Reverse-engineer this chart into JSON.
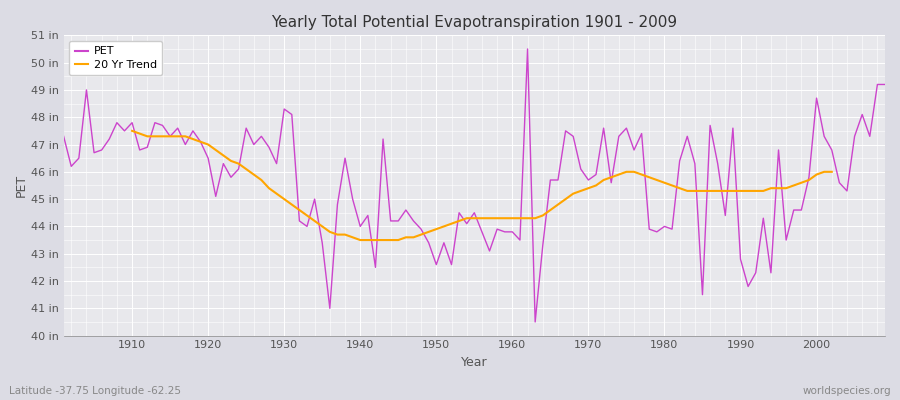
{
  "title": "Yearly Total Potential Evapotranspiration 1901 - 2009",
  "xlabel": "Year",
  "ylabel": "PET",
  "subtitle": "Latitude -37.75 Longitude -62.25",
  "watermark": "worldspecies.org",
  "pet_color": "#CC44CC",
  "trend_color": "#FFA500",
  "bg_color": "#E8E8EC",
  "fig_color": "#DCDCE4",
  "grid_color": "#FFFFFF",
  "ylim": [
    40,
    51
  ],
  "yticks": [
    40,
    41,
    42,
    43,
    44,
    45,
    46,
    47,
    48,
    49,
    50,
    51
  ],
  "xticks": [
    1910,
    1920,
    1930,
    1940,
    1950,
    1960,
    1970,
    1980,
    1990,
    2000
  ],
  "years": [
    1901,
    1902,
    1903,
    1904,
    1905,
    1906,
    1907,
    1908,
    1909,
    1910,
    1911,
    1912,
    1913,
    1914,
    1915,
    1916,
    1917,
    1918,
    1919,
    1920,
    1921,
    1922,
    1923,
    1924,
    1925,
    1926,
    1927,
    1928,
    1929,
    1930,
    1931,
    1932,
    1933,
    1934,
    1935,
    1936,
    1937,
    1938,
    1939,
    1940,
    1941,
    1942,
    1943,
    1944,
    1945,
    1946,
    1947,
    1948,
    1949,
    1950,
    1951,
    1952,
    1953,
    1954,
    1955,
    1956,
    1957,
    1958,
    1959,
    1960,
    1961,
    1962,
    1963,
    1964,
    1965,
    1966,
    1967,
    1968,
    1969,
    1970,
    1971,
    1972,
    1973,
    1974,
    1975,
    1976,
    1977,
    1978,
    1979,
    1980,
    1981,
    1982,
    1983,
    1984,
    1985,
    1986,
    1987,
    1988,
    1989,
    1990,
    1991,
    1992,
    1993,
    1994,
    1995,
    1996,
    1997,
    1998,
    1999,
    2000,
    2001,
    2002,
    2003,
    2004,
    2005,
    2006,
    2007,
    2008,
    2009
  ],
  "pet_values": [
    47.3,
    46.2,
    46.5,
    49.0,
    46.7,
    46.8,
    47.2,
    47.8,
    47.5,
    47.8,
    46.8,
    46.9,
    47.8,
    47.7,
    47.3,
    47.6,
    47.0,
    47.5,
    47.1,
    46.5,
    45.1,
    46.3,
    45.8,
    46.1,
    47.6,
    47.0,
    47.3,
    46.9,
    46.3,
    48.3,
    48.1,
    44.2,
    44.0,
    45.0,
    43.4,
    41.0,
    44.8,
    46.5,
    45.0,
    44.0,
    44.4,
    42.5,
    47.2,
    44.2,
    44.2,
    44.6,
    44.2,
    43.9,
    43.4,
    42.6,
    43.4,
    42.6,
    44.5,
    44.1,
    44.5,
    43.8,
    43.1,
    43.9,
    43.8,
    43.8,
    43.5,
    50.5,
    40.5,
    43.3,
    45.7,
    45.7,
    47.5,
    47.3,
    46.1,
    45.7,
    45.9,
    47.6,
    45.6,
    47.3,
    47.6,
    46.8,
    47.4,
    43.9,
    43.8,
    44.0,
    43.9,
    46.4,
    47.3,
    46.3,
    41.5,
    47.7,
    46.3,
    44.4,
    47.6,
    42.8,
    41.8,
    42.3,
    44.3,
    42.3,
    46.8,
    43.5,
    44.6,
    44.6,
    45.8,
    48.7,
    47.3,
    46.8,
    45.6,
    45.3,
    47.3,
    48.1,
    47.3,
    49.2,
    49.2
  ],
  "trend_values": [
    null,
    null,
    null,
    null,
    null,
    null,
    null,
    null,
    null,
    47.5,
    47.4,
    47.3,
    47.3,
    47.3,
    47.3,
    47.3,
    47.3,
    47.2,
    47.1,
    47.0,
    46.8,
    46.6,
    46.4,
    46.3,
    46.1,
    45.9,
    45.7,
    45.4,
    45.2,
    45.0,
    44.8,
    44.6,
    44.4,
    44.2,
    44.0,
    43.8,
    43.7,
    43.7,
    43.6,
    43.5,
    43.5,
    43.5,
    43.5,
    43.5,
    43.5,
    43.6,
    43.6,
    43.7,
    43.8,
    43.9,
    44.0,
    44.1,
    44.2,
    44.3,
    44.3,
    44.3,
    44.3,
    44.3,
    44.3,
    44.3,
    44.3,
    44.3,
    44.3,
    44.4,
    44.6,
    44.8,
    45.0,
    45.2,
    45.3,
    45.4,
    45.5,
    45.7,
    45.8,
    45.9,
    46.0,
    46.0,
    45.9,
    45.8,
    45.7,
    45.6,
    45.5,
    45.4,
    45.3,
    45.3,
    45.3,
    45.3,
    45.3,
    45.3,
    45.3,
    45.3,
    45.3,
    45.3,
    45.3,
    45.4,
    45.4,
    45.4,
    45.5,
    45.6,
    45.7,
    45.9,
    46.0,
    46.0,
    null,
    null
  ]
}
